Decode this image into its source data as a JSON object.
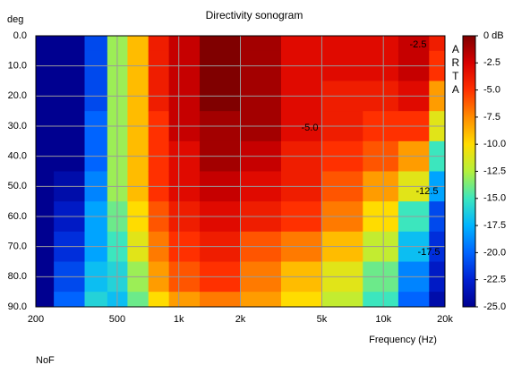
{
  "chart_data": {
    "type": "heatmap",
    "title": "Directivity sonogram",
    "y_label": "deg",
    "x_label": "Frequency (Hz)",
    "watermark": "ARTA",
    "footer": "NoF",
    "log_x": true,
    "y_inverted": true,
    "grid": true,
    "x": [
      200,
      300,
      400,
      500,
      630,
      800,
      1000,
      1600,
      2500,
      4000,
      6300,
      10000,
      14000,
      20000
    ],
    "y": [
      0,
      10,
      20,
      30,
      40,
      50,
      60,
      70,
      80,
      90
    ],
    "z": [
      [
        -25,
        -25,
        -25,
        -25,
        -25,
        -25,
        -25,
        -25,
        -25,
        -25
      ],
      [
        -25,
        -25,
        -25,
        -25,
        -25,
        -24,
        -23,
        -22,
        -21,
        -20
      ],
      [
        -21,
        -21,
        -21,
        -20,
        -20,
        -19,
        -18,
        -18,
        -17,
        -16
      ],
      [
        -13,
        -13,
        -13,
        -13,
        -13,
        -13,
        -14,
        -15,
        -16,
        -17
      ],
      [
        -9,
        -9,
        -9,
        -9,
        -9,
        -9,
        -10,
        -11,
        -13,
        -14
      ],
      [
        -4,
        -4,
        -4,
        -5,
        -5,
        -5,
        -6,
        -7,
        -8,
        -10
      ],
      [
        -2,
        -2,
        -2,
        -2,
        -3,
        -3,
        -4,
        -5,
        -6,
        -8
      ],
      [
        0,
        0,
        0,
        -1,
        -1,
        -2,
        -3,
        -4,
        -5,
        -7
      ],
      [
        -1,
        -1,
        -1,
        -1,
        -2,
        -3,
        -4,
        -6,
        -7,
        -8
      ],
      [
        -3,
        -3,
        -3,
        -3,
        -4,
        -4,
        -5,
        -7,
        -9,
        -10
      ],
      [
        -3,
        -3,
        -4,
        -4,
        -5,
        -6,
        -7,
        -9,
        -11,
        -12
      ],
      [
        -3,
        -3,
        -4,
        -5,
        -6,
        -8,
        -10,
        -12,
        -14,
        -15
      ],
      [
        -2,
        -2,
        -3,
        -5,
        -8,
        -11,
        -15,
        -17,
        -19,
        -20
      ],
      [
        -4,
        -5,
        -8,
        -11,
        -15,
        -18,
        -21,
        -22,
        -23,
        -24
      ]
    ],
    "xlim": [
      200,
      20000
    ],
    "xticks": [
      200,
      500,
      {
        "value": 1000,
        "label": "1k"
      },
      {
        "value": 2000,
        "label": "2k"
      },
      {
        "value": 5000,
        "label": "5k"
      },
      {
        "value": 10000,
        "label": "10k"
      },
      {
        "value": 20000,
        "label": "20k"
      }
    ],
    "ylim": [
      0,
      90
    ],
    "yticks": [
      {
        "value": 0,
        "label": "0.0"
      },
      {
        "value": 10,
        "label": "10.0"
      },
      {
        "value": 20,
        "label": "20.0"
      },
      {
        "value": 30,
        "label": "30.0"
      },
      {
        "value": 40,
        "label": "40.0"
      },
      {
        "value": 50,
        "label": "50.0"
      },
      {
        "value": 60,
        "label": "60.0"
      },
      {
        "value": 70,
        "label": "70.0"
      },
      {
        "value": 80,
        "label": "80.0"
      },
      {
        "value": 90,
        "label": "90.0"
      }
    ],
    "clim": [
      -25,
      0
    ],
    "cticks": [
      {
        "value": 0,
        "label": "0 dB"
      },
      -2.5,
      {
        "value": -5,
        "label": "-5.0"
      },
      -7.5,
      {
        "value": -10,
        "label": "-10.0"
      },
      -12.5,
      {
        "value": -15,
        "label": "-15.0"
      },
      -17.5,
      {
        "value": -20,
        "label": "-20.0"
      },
      -22.5,
      {
        "value": -25,
        "label": "-25.0"
      }
    ],
    "colorscale": [
      "#800000",
      "#d80000",
      "#ff3000",
      "#ff8c00",
      "#ffdc00",
      "#b4f03c",
      "#3ce6be",
      "#00b4ff",
      "#0064ff",
      "#0020d2",
      "#000090"
    ],
    "annotations": [
      "-2.5",
      "-5.0",
      "-12.5",
      "-17.5"
    ]
  }
}
